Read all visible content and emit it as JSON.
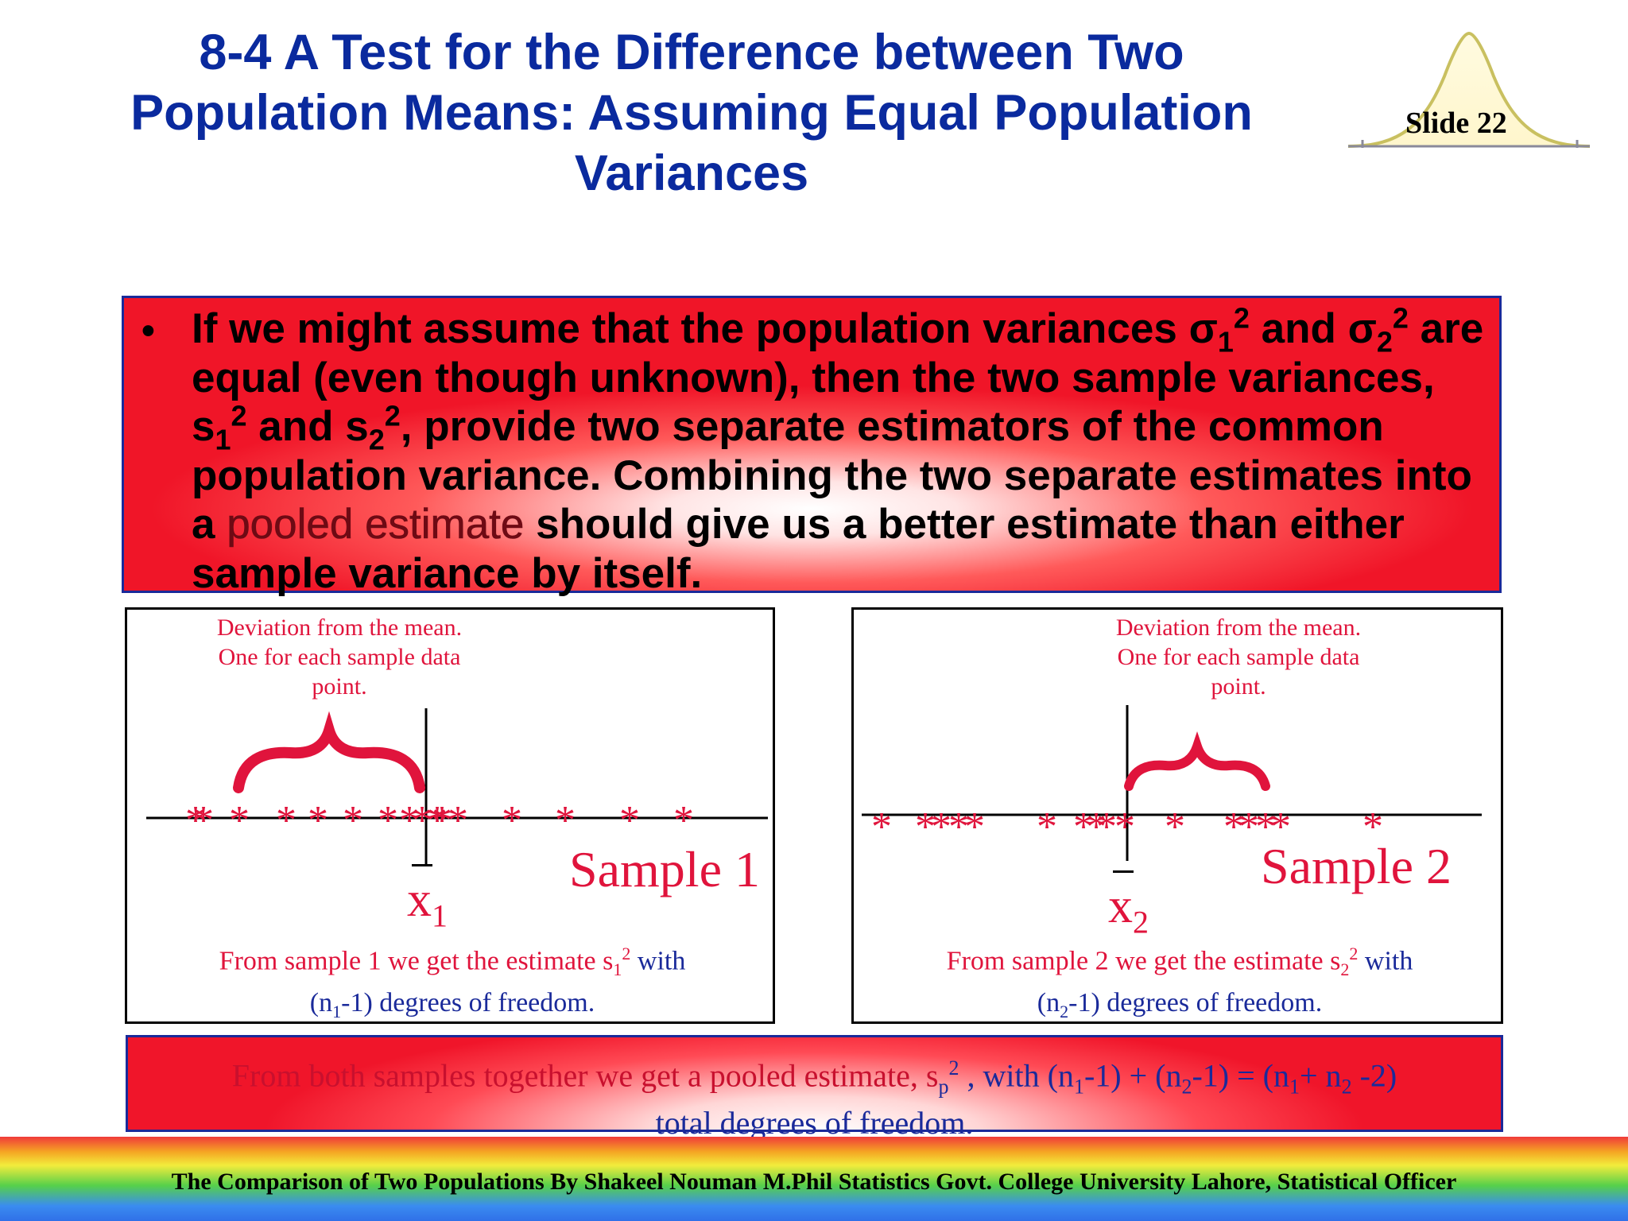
{
  "title": {
    "line1": "8-4  A Test for the Difference between  Two",
    "line2": "Population Means: Assuming Equal Population",
    "line3": "Variances"
  },
  "slide_number": "Slide 22",
  "bullet": {
    "symbol": "•",
    "text_before": "If we might assume that the population variances σ",
    "sigma1_sub": "1",
    "sq": "2",
    "and": " and σ",
    "sigma2_sub": "2",
    "line2": " are equal (even though unknown), then the two sample variances, s",
    "s1_sub": "1",
    "and2": " and s",
    "s2_sub": "2",
    "rest1": ", provide two separate estimators of the common population variance.  Combining the two separate estimates into a ",
    "highlight": "pooled estimate",
    "rest2": " should give us a better estimate than either sample variance by itself."
  },
  "panel1": {
    "deviation_note": "Deviation from the mean.  One for each sample data point.",
    "sample_label": "Sample 1",
    "mean_symbol": "x",
    "mean_sub": "1",
    "from_red": "From sample 1 we get the estimate s",
    "from_sub": "1",
    "from_sup": "2",
    "from_red_end": " with",
    "dof_a": "(n",
    "dof_sub": "1",
    "dof_b": "-1) degrees of freedom."
  },
  "panel2": {
    "deviation_note": "Deviation from the mean.  One for each sample data point.",
    "sample_label": "Sample 2",
    "mean_symbol": "x",
    "mean_sub": "2",
    "from_red": "From sample 2 we get the estimate s",
    "from_sub": "2",
    "from_sup": "2",
    "from_red_end": " with",
    "dof_a": "(n",
    "dof_sub": "2",
    "dof_b": "-1) degrees of freedom."
  },
  "pooled": {
    "red": "From both samples together we get a pooled estimate, s",
    "sp_sub": "p",
    "sp_sup": "2",
    "blue1": " , with (n",
    "n1": "1",
    "blue2": "-1) + (n",
    "n2": "2",
    "blue3": "-1) = (n",
    "n1b": "1",
    "blue4": "+ n",
    "n2b": "2",
    "blue5": " -2)",
    "line2": "total degrees of freedom."
  },
  "footer": "The Comparison of Two Populations By Shakeel Nouman M.Phil Statistics Govt. College University Lahore, Statistical Officer",
  "colors": {
    "title": "#0a2a9e",
    "accent_red": "#e0143c",
    "blue_text": "#1a2a9a"
  }
}
